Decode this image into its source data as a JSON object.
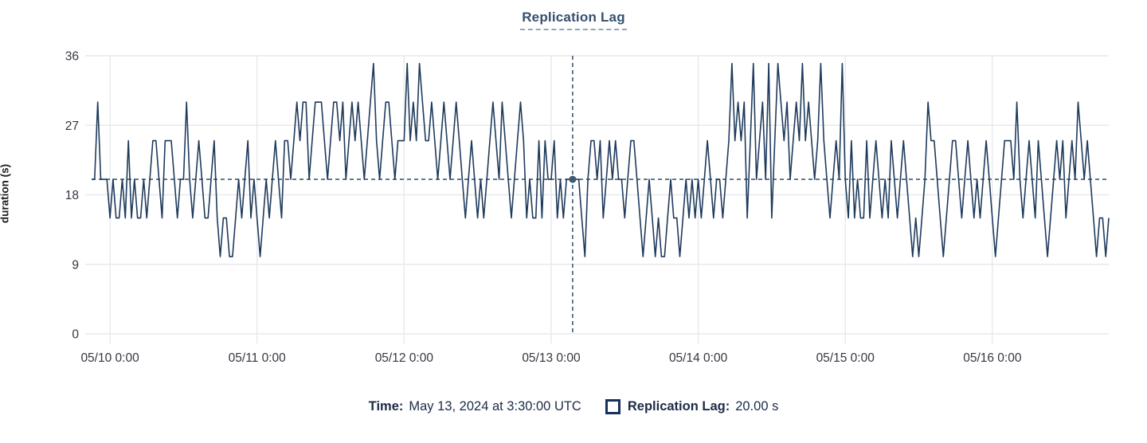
{
  "title": {
    "text": "Replication Lag"
  },
  "colors": {
    "line": "#1e3a5c",
    "crosshair": "#3d5a74",
    "grid": "#e8e9eb",
    "axis_text": "#343741",
    "title_text": "#35506f",
    "tooltip_text": "#1c2b47",
    "swatch_border": "#16325c",
    "background": "#ffffff"
  },
  "tooltip": {
    "time_label": "Time:",
    "time_value": "May 13, 2024 at 3:30:00 UTC",
    "series_label": "Replication Lag:",
    "series_value": "20.00 s"
  },
  "crosshair": {
    "hour": 78.5,
    "value": 20
  },
  "chart_data": {
    "type": "line",
    "title": "Replication Lag",
    "xlabel": "",
    "ylabel": "duration (s)",
    "ylim": [
      0,
      36
    ],
    "y_ticks": [
      0,
      9,
      18,
      27,
      36
    ],
    "x_start": "2024-05-09 21:00 UTC",
    "interval_minutes": 30,
    "x_tick_hours": [
      3,
      27,
      51,
      75,
      99,
      123,
      147
    ],
    "x_tick_labels": [
      "05/10 0:00",
      "05/11 0:00",
      "05/12 0:00",
      "05/13 0:00",
      "05/14 0:00",
      "05/15 0:00",
      "05/16 0:00"
    ],
    "grid": true,
    "legend_position": "bottom",
    "highlight_point": {
      "time": "May 13, 2024 at 3:30:00 UTC",
      "value_label": "20.00 s",
      "value": 20
    },
    "series": [
      {
        "name": "Replication Lag",
        "unit": "s",
        "values": [
          20,
          20,
          30,
          20,
          20,
          20,
          15,
          20,
          15,
          15,
          20,
          15,
          25,
          15,
          20,
          15,
          15,
          20,
          15,
          20,
          25,
          25,
          20,
          15,
          25,
          25,
          25,
          20,
          15,
          20,
          20,
          30,
          20,
          15,
          20,
          25,
          20,
          15,
          15,
          20,
          25,
          15,
          10,
          15,
          15,
          10,
          10,
          15,
          20,
          15,
          20,
          25,
          15,
          20,
          15,
          10,
          15,
          20,
          15,
          20,
          25,
          20,
          15,
          25,
          25,
          20,
          25,
          30,
          25,
          30,
          30,
          20,
          25,
          30,
          30,
          30,
          25,
          20,
          25,
          30,
          30,
          25,
          30,
          20,
          25,
          30,
          25,
          30,
          25,
          20,
          25,
          30,
          35,
          25,
          20,
          25,
          30,
          30,
          25,
          20,
          25,
          25,
          25,
          35,
          25,
          30,
          25,
          35,
          30,
          25,
          25,
          30,
          25,
          20,
          25,
          30,
          25,
          20,
          25,
          30,
          25,
          20,
          15,
          20,
          25,
          20,
          15,
          20,
          15,
          20,
          25,
          30,
          25,
          20,
          30,
          25,
          20,
          15,
          20,
          25,
          30,
          25,
          15,
          20,
          15,
          15,
          25,
          15,
          25,
          20,
          20,
          25,
          15,
          20,
          15,
          20,
          20,
          20,
          20,
          20,
          15,
          10,
          20,
          25,
          25,
          20,
          25,
          15,
          20,
          25,
          20,
          25,
          20,
          20,
          15,
          20,
          25,
          25,
          20,
          15,
          10,
          15,
          20,
          15,
          10,
          15,
          10,
          10,
          15,
          20,
          15,
          15,
          10,
          15,
          20,
          15,
          20,
          15,
          20,
          15,
          20,
          25,
          20,
          15,
          20,
          20,
          15,
          20,
          25,
          35,
          25,
          30,
          25,
          30,
          15,
          25,
          35,
          20,
          25,
          30,
          20,
          35,
          15,
          25,
          35,
          30,
          25,
          30,
          20,
          25,
          30,
          25,
          35,
          25,
          30,
          25,
          20,
          25,
          35,
          25,
          20,
          15,
          20,
          25,
          20,
          35,
          20,
          15,
          25,
          15,
          20,
          15,
          15,
          25,
          15,
          20,
          25,
          20,
          15,
          20,
          15,
          25,
          20,
          15,
          20,
          25,
          20,
          15,
          10,
          15,
          10,
          15,
          20,
          30,
          25,
          25,
          20,
          15,
          10,
          15,
          20,
          25,
          25,
          20,
          15,
          20,
          25,
          20,
          15,
          20,
          15,
          20,
          25,
          20,
          15,
          10,
          15,
          20,
          25,
          25,
          25,
          20,
          30,
          20,
          15,
          20,
          25,
          20,
          15,
          25,
          20,
          15,
          10,
          15,
          20,
          25,
          20,
          25,
          15,
          20,
          25,
          20,
          30,
          25,
          20,
          25,
          20,
          15,
          10,
          15,
          15,
          10,
          15
        ]
      }
    ]
  }
}
